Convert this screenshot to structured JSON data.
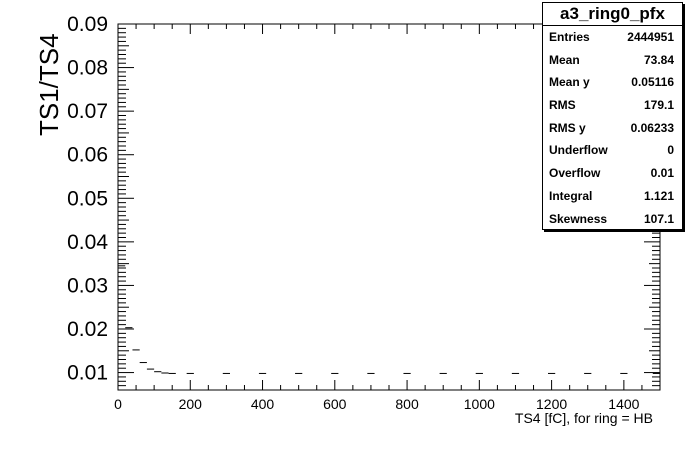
{
  "chart_data": {
    "type": "scatter",
    "title": "",
    "xlabel": "TS4 [fC], for ring = HB",
    "ylabel": "TS1/TS4",
    "xlim": [
      0,
      1500
    ],
    "ylim": [
      0.006,
      0.09
    ],
    "x_ticks": [
      0,
      200,
      400,
      600,
      800,
      1000,
      1200,
      1400
    ],
    "y_ticks": [
      0.01,
      0.02,
      0.03,
      0.04,
      0.05,
      0.06,
      0.07,
      0.08,
      0.09
    ],
    "y_tick_labels": [
      "0.01",
      "0.02",
      "0.03",
      "0.04",
      "0.05",
      "0.06",
      "0.07",
      "0.08",
      "0.09"
    ],
    "series": [
      {
        "x": [
          10,
          30,
          50,
          70,
          90,
          110,
          130,
          150,
          200,
          300,
          400,
          500,
          600,
          700,
          800,
          900,
          1000,
          1100,
          1200,
          1300,
          1400,
          1490
        ],
        "y": [
          0.0345,
          0.0203,
          0.0152,
          0.0123,
          0.0108,
          0.0102,
          0.0099,
          0.0098,
          0.0098,
          0.0098,
          0.0098,
          0.0098,
          0.0098,
          0.0098,
          0.0098,
          0.0098,
          0.0098,
          0.0098,
          0.0098,
          0.0098,
          0.0098,
          0.0098
        ],
        "xerr": 10,
        "color": "#000000"
      }
    ],
    "stats": {
      "title": "a3_ring0_pfx",
      "rows": [
        {
          "label": "Entries",
          "value": "2444951"
        },
        {
          "label": "Mean",
          "value": "73.84"
        },
        {
          "label": "Mean y",
          "value": "0.05116"
        },
        {
          "label": "RMS",
          "value": "179.1"
        },
        {
          "label": "RMS y",
          "value": "0.06233"
        },
        {
          "label": "Underflow",
          "value": "0"
        },
        {
          "label": "Overflow",
          "value": "0.01"
        },
        {
          "label": "Integral",
          "value": "1.121"
        },
        {
          "label": "Skewness",
          "value": "107.1"
        }
      ]
    }
  }
}
